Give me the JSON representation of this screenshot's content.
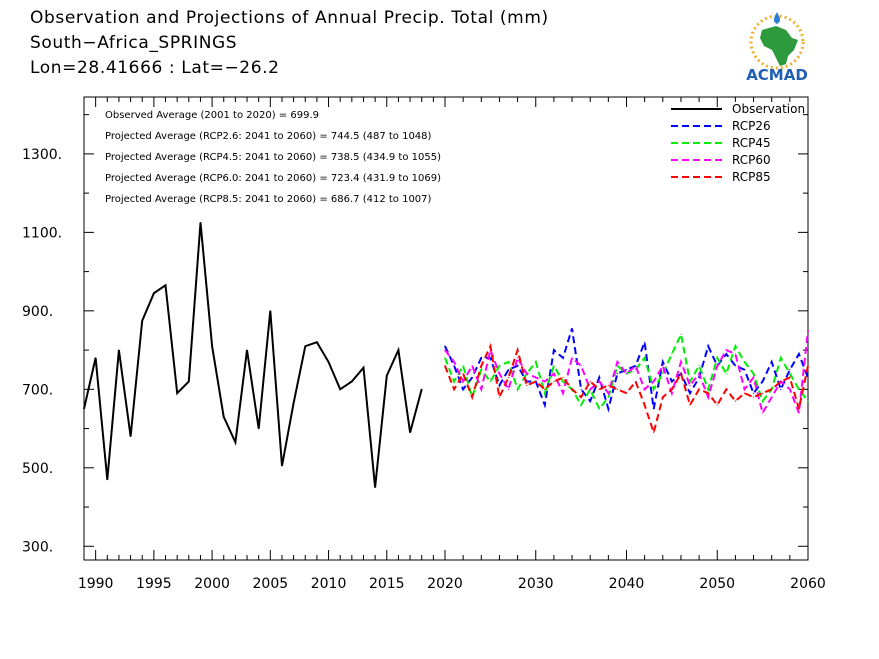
{
  "header": {
    "title": "Observation and Projections of Annual Precip. Total (mm)",
    "location": "South−Africa_SPRINGS",
    "coords": "Lon=28.41666 : Lat=−26.2"
  },
  "logo": {
    "text": "ACMAD",
    "icon": "africa-map-logo-icon"
  },
  "stats": [
    "Observed Average (2001 to 2020) = 699.9",
    "Projected Average (RCP2.6: 2041 to 2060) = 744.5 (487 to 1048)",
    "Projected Average (RCP4.5: 2041 to 2060) = 738.5 (434.9 to 1055)",
    "Projected Average (RCP6.0: 2041 to 2060) = 723.4 (431.9 to 1069)",
    "Projected Average (RCP8.5: 2041 to 2060) = 686.7 (412 to 1007)"
  ],
  "colors": {
    "Observation": "#000000",
    "RCP26": "#0000ff",
    "RCP45": "#00ee00",
    "RCP60": "#ff00ff",
    "RCP85": "#ff0000"
  },
  "chart_data": {
    "type": "line",
    "legend_position": "top-right",
    "grid": false,
    "ylim": [
      265,
      1445
    ],
    "yticks": [
      300,
      500,
      700,
      900,
      1100,
      1300
    ],
    "ytick_labels": [
      "300.",
      "500.",
      "700.",
      "900.",
      "1100.",
      "1300."
    ],
    "xticks": [
      1990,
      1995,
      2000,
      2005,
      2010,
      2015,
      2020,
      2030,
      2040,
      2050,
      2060
    ],
    "xtick_labels": [
      "1990",
      "1995",
      "2000",
      "2005",
      "2010",
      "2015",
      "2020",
      "2030",
      "2040",
      "2050",
      "2060"
    ],
    "series": [
      {
        "name": "Observation",
        "style": "solid",
        "x": [
          1989,
          1990,
          1991,
          1992,
          1993,
          1994,
          1995,
          1996,
          1997,
          1998,
          1999,
          2000,
          2001,
          2002,
          2003,
          2004,
          2005,
          2006,
          2007,
          2008,
          2009,
          2010,
          2011,
          2012,
          2013,
          2014,
          2015,
          2016,
          2017,
          2018,
          2019,
          2020
        ],
        "values": [
          650,
          780,
          470,
          800,
          580,
          875,
          945,
          965,
          690,
          720,
          1125,
          810,
          630,
          565,
          800,
          600,
          900,
          505,
          665,
          810,
          820,
          770,
          700,
          720,
          755,
          450,
          735,
          800,
          590,
          700,
          null,
          null
        ]
      },
      {
        "name": "RCP26",
        "style": "dashed",
        "x": [
          2020,
          2021,
          2022,
          2023,
          2024,
          2025,
          2026,
          2027,
          2028,
          2029,
          2030,
          2031,
          2032,
          2033,
          2034,
          2035,
          2036,
          2037,
          2038,
          2039,
          2040,
          2041,
          2042,
          2043,
          2044,
          2045,
          2046,
          2047,
          2048,
          2049,
          2050,
          2051,
          2052,
          2053,
          2054,
          2055,
          2056,
          2057,
          2058,
          2059,
          2060
        ],
        "values": [
          810,
          760,
          700,
          730,
          780,
          780,
          710,
          750,
          760,
          720,
          720,
          660,
          800,
          780,
          855,
          700,
          670,
          730,
          650,
          740,
          750,
          760,
          820,
          650,
          770,
          720,
          740,
          690,
          730,
          810,
          760,
          790,
          760,
          750,
          690,
          720,
          770,
          700,
          750,
          790,
          730
        ]
      },
      {
        "name": "RCP45",
        "style": "dashed",
        "x": [
          2020,
          2021,
          2022,
          2023,
          2024,
          2025,
          2026,
          2027,
          2028,
          2029,
          2030,
          2031,
          2032,
          2033,
          2034,
          2035,
          2036,
          2037,
          2038,
          2039,
          2040,
          2041,
          2042,
          2043,
          2044,
          2045,
          2046,
          2047,
          2048,
          2049,
          2050,
          2051,
          2052,
          2053,
          2054,
          2055,
          2056,
          2057,
          2058,
          2059,
          2060
        ],
        "values": [
          780,
          720,
          760,
          680,
          750,
          720,
          760,
          770,
          700,
          740,
          770,
          690,
          760,
          720,
          700,
          660,
          700,
          650,
          680,
          760,
          740,
          750,
          780,
          700,
          740,
          790,
          840,
          720,
          760,
          700,
          780,
          740,
          810,
          770,
          740,
          670,
          700,
          780,
          740,
          700,
          670
        ]
      },
      {
        "name": "RCP60",
        "style": "dashed",
        "x": [
          2020,
          2021,
          2022,
          2023,
          2024,
          2025,
          2026,
          2027,
          2028,
          2029,
          2030,
          2031,
          2032,
          2033,
          2034,
          2035,
          2036,
          2037,
          2038,
          2039,
          2040,
          2041,
          2042,
          2043,
          2044,
          2045,
          2046,
          2047,
          2048,
          2049,
          2050,
          2051,
          2052,
          2053,
          2054,
          2055,
          2056,
          2057,
          2058,
          2059,
          2060
        ],
        "values": [
          800,
          770,
          720,
          760,
          700,
          800,
          740,
          700,
          780,
          740,
          730,
          720,
          740,
          690,
          780,
          760,
          700,
          720,
          690,
          770,
          740,
          760,
          700,
          720,
          760,
          690,
          770,
          710,
          740,
          680,
          760,
          800,
          790,
          700,
          730,
          640,
          680,
          720,
          700,
          640,
          850
        ]
      },
      {
        "name": "RCP85",
        "style": "dashed",
        "x": [
          2020,
          2021,
          2022,
          2023,
          2024,
          2025,
          2026,
          2027,
          2028,
          2029,
          2030,
          2031,
          2032,
          2033,
          2034,
          2035,
          2036,
          2037,
          2038,
          2039,
          2040,
          2041,
          2042,
          2043,
          2044,
          2045,
          2046,
          2047,
          2048,
          2049,
          2050,
          2051,
          2052,
          2053,
          2054,
          2055,
          2056,
          2057,
          2058,
          2059,
          2060
        ],
        "values": [
          760,
          700,
          740,
          680,
          760,
          810,
          680,
          730,
          800,
          710,
          720,
          700,
          720,
          730,
          700,
          680,
          720,
          700,
          710,
          700,
          690,
          720,
          660,
          590,
          680,
          700,
          740,
          660,
          700,
          690,
          660,
          700,
          670,
          690,
          680,
          690,
          700,
          720,
          730,
          650,
          760
        ]
      }
    ]
  }
}
